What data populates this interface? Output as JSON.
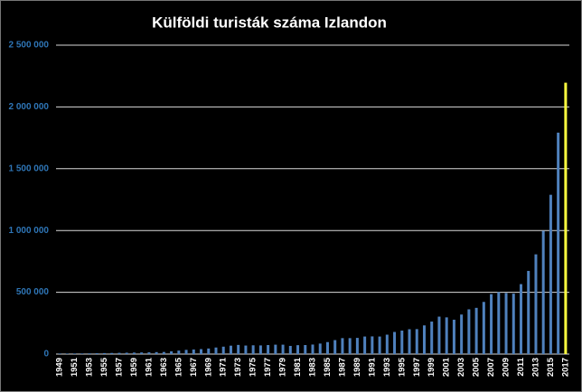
{
  "chart_data": {
    "type": "bar",
    "title": "Külföldi turisták száma Izlandon",
    "categories": [
      "1949",
      null,
      "1951",
      null,
      "1953",
      null,
      "1955",
      null,
      "1957",
      null,
      "1959",
      null,
      "1961",
      null,
      "1963",
      null,
      "1965",
      null,
      "1967",
      null,
      "1969",
      null,
      "1971",
      null,
      "1973",
      null,
      "1975",
      null,
      "1977",
      null,
      "1979",
      null,
      "1981",
      null,
      "1983",
      null,
      "1985",
      null,
      "1987",
      null,
      "1989",
      null,
      "1991",
      null,
      "1993",
      null,
      "1995",
      null,
      "1997",
      null,
      "1999",
      null,
      "2001",
      null,
      "2003",
      null,
      "2005",
      null,
      "2007",
      null,
      "2009",
      null,
      "2011",
      null,
      "2013",
      null,
      "2015",
      null,
      "2017"
    ],
    "values": [
      5000,
      4400,
      4800,
      5000,
      6000,
      7000,
      8000,
      9000,
      10000,
      11000,
      12000,
      13000,
      14000,
      16000,
      17000,
      22000,
      28000,
      34000,
      37000,
      40000,
      45000,
      53000,
      60000,
      68000,
      74000,
      69000,
      71000,
      70000,
      73000,
      76000,
      76000,
      66000,
      72000,
      73000,
      77000,
      85000,
      97000,
      113000,
      129000,
      129000,
      131000,
      142000,
      143000,
      142000,
      157000,
      179000,
      190000,
      201000,
      202000,
      232000,
      263000,
      303000,
      297000,
      278000,
      320000,
      362000,
      374000,
      422000,
      485000,
      502000,
      494000,
      489000,
      566000,
      673000,
      807000,
      998000,
      1289000,
      1792000,
      2196000
    ],
    "color": "#4f81bd",
    "highlight_color": "#ffff3f",
    "highlight_index": 68,
    "ylim": [
      0,
      2500000
    ],
    "yticks": [
      0,
      {
        "value": 500000,
        "label": "500 000"
      },
      {
        "value": 1000000,
        "label": "1 000 000"
      },
      {
        "value": 1500000,
        "label": "1 500 000"
      },
      {
        "value": 2000000,
        "label": "2 000 000"
      },
      {
        "value": 2500000,
        "label": "2 500 000"
      }
    ],
    "grid": true
  }
}
